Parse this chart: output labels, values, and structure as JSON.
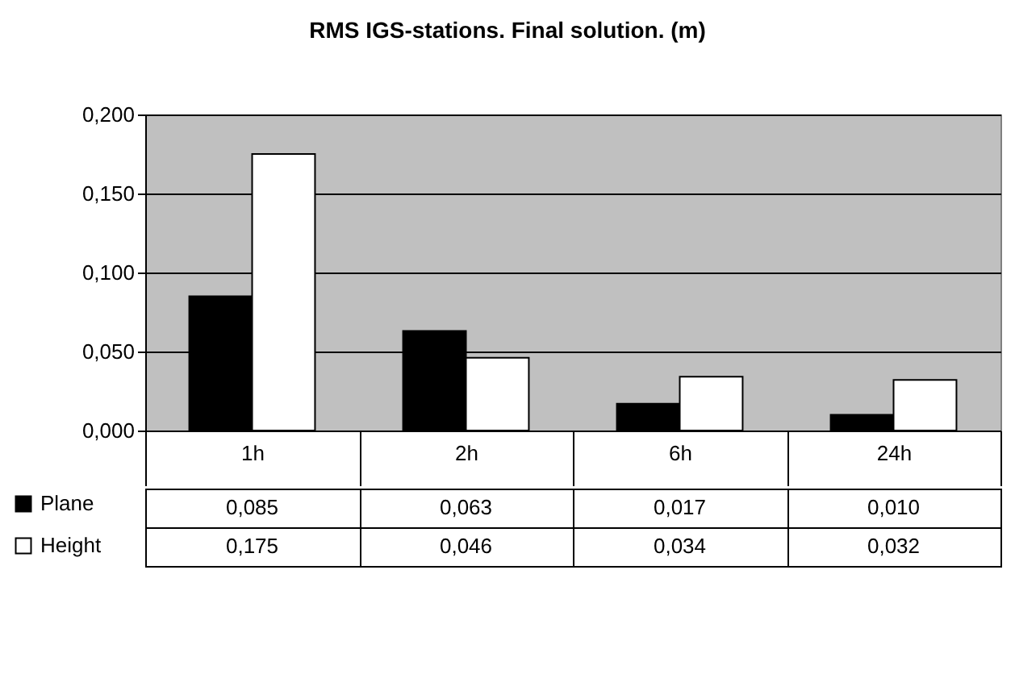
{
  "chart_data": {
    "type": "bar",
    "title": "RMS IGS-stations. Final solution. (m)",
    "categories": [
      "1h",
      "2h",
      "6h",
      "24h"
    ],
    "series": [
      {
        "name": "Plane",
        "color": "#000000",
        "values": [
          0.085,
          0.063,
          0.017,
          0.01
        ],
        "value_labels": [
          "0,085",
          "0,063",
          "0,017",
          "0,010"
        ]
      },
      {
        "name": "Height",
        "color": "#ffffff",
        "values": [
          0.175,
          0.046,
          0.034,
          0.032
        ],
        "value_labels": [
          "0,175",
          "0,046",
          "0,034",
          "0,032"
        ]
      }
    ],
    "ylim": [
      0,
      0.2
    ],
    "yticks": [
      {
        "value": 0,
        "label": "0,000"
      },
      {
        "value": 0.05,
        "label": "0,050"
      },
      {
        "value": 0.1,
        "label": "0,100"
      },
      {
        "value": 0.15,
        "label": "0,150"
      },
      {
        "value": 0.2,
        "label": "0,200"
      }
    ],
    "grid": "y",
    "legend": "bottom left"
  }
}
